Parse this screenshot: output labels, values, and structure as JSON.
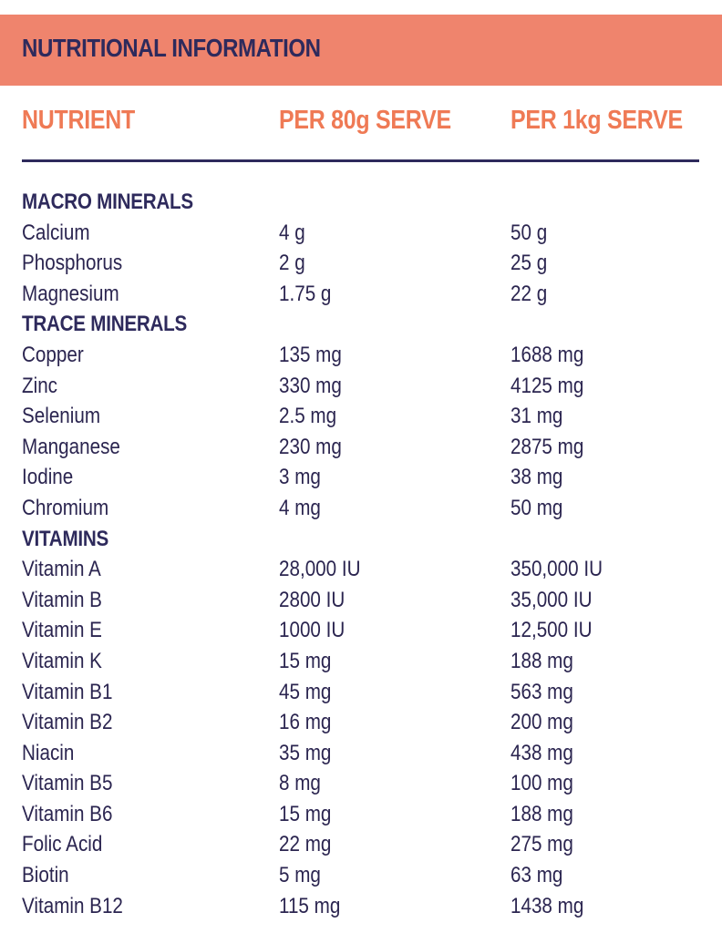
{
  "banner": {
    "title": "NUTRITIONAL INFORMATION",
    "color": "#ef846d"
  },
  "headers": {
    "nutrient": "NUTRIENT",
    "per_80g": "PER 80g SERVE",
    "per_1kg": "PER 1kg SERVE",
    "color": "#ef7a55"
  },
  "sections": [
    {
      "title": "MACRO MINERALS",
      "rows": [
        {
          "name": "Calcium",
          "per80": "4 g",
          "per1kg": "50 g"
        },
        {
          "name": "Phosphorus",
          "per80": "2 g",
          "per1kg": "25 g"
        },
        {
          "name": "Magnesium",
          "per80": "1.75 g",
          "per1kg": "22 g"
        }
      ]
    },
    {
      "title": "TRACE MINERALS",
      "rows": [
        {
          "name": "Copper",
          "per80": "135 mg",
          "per1kg": "1688 mg"
        },
        {
          "name": "Zinc",
          "per80": "330 mg",
          "per1kg": "4125 mg"
        },
        {
          "name": "Selenium",
          "per80": "2.5 mg",
          "per1kg": "31 mg"
        },
        {
          "name": "Manganese",
          "per80": "230 mg",
          "per1kg": "2875 mg"
        },
        {
          "name": "Iodine",
          "per80": "3 mg",
          "per1kg": "38 mg"
        },
        {
          "name": "Chromium",
          "per80": "4 mg",
          "per1kg": "50 mg"
        }
      ]
    },
    {
      "title": "VITAMINS",
      "rows": [
        {
          "name": "Vitamin A",
          "per80": "28,000 IU",
          "per1kg": "350,000 IU"
        },
        {
          "name": "Vitamin B",
          "per80": "2800 IU",
          "per1kg": "35,000 IU"
        },
        {
          "name": "Vitamin E",
          "per80": "1000 IU",
          "per1kg": "12,500 IU"
        },
        {
          "name": "Vitamin K",
          "per80": "15 mg",
          "per1kg": "188 mg"
        },
        {
          "name": "Vitamin B1",
          "per80": "45 mg",
          "per1kg": "563 mg"
        },
        {
          "name": "Vitamin B2",
          "per80": "16 mg",
          "per1kg": "200 mg"
        },
        {
          "name": "Niacin",
          "per80": "35 mg",
          "per1kg": "438 mg"
        },
        {
          "name": "Vitamin B5",
          "per80": "8 mg",
          "per1kg": "100 mg"
        },
        {
          "name": "Vitamin B6",
          "per80": "15 mg",
          "per1kg": "188 mg"
        },
        {
          "name": "Folic Acid",
          "per80": "22 mg",
          "per1kg": "275 mg"
        },
        {
          "name": "Biotin",
          "per80": "5 mg",
          "per1kg": "63 mg"
        },
        {
          "name": "Vitamin B12",
          "per80": "115 mg",
          "per1kg": "1438 mg"
        }
      ]
    }
  ]
}
